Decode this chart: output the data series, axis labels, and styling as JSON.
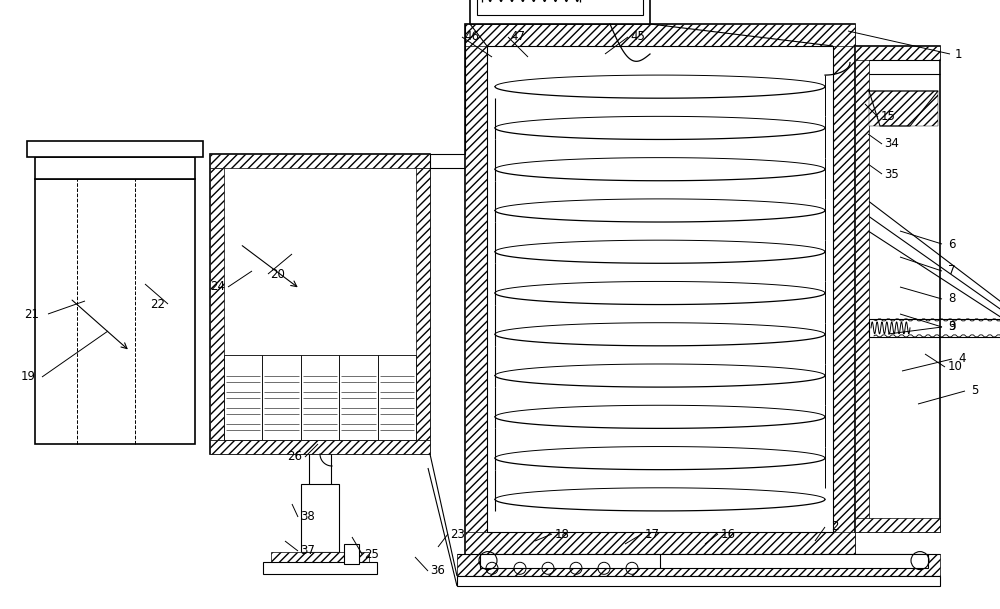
{
  "line_color": "#000000",
  "bg_color": "#ffffff",
  "lw": 0.8,
  "tlw": 1.2
}
